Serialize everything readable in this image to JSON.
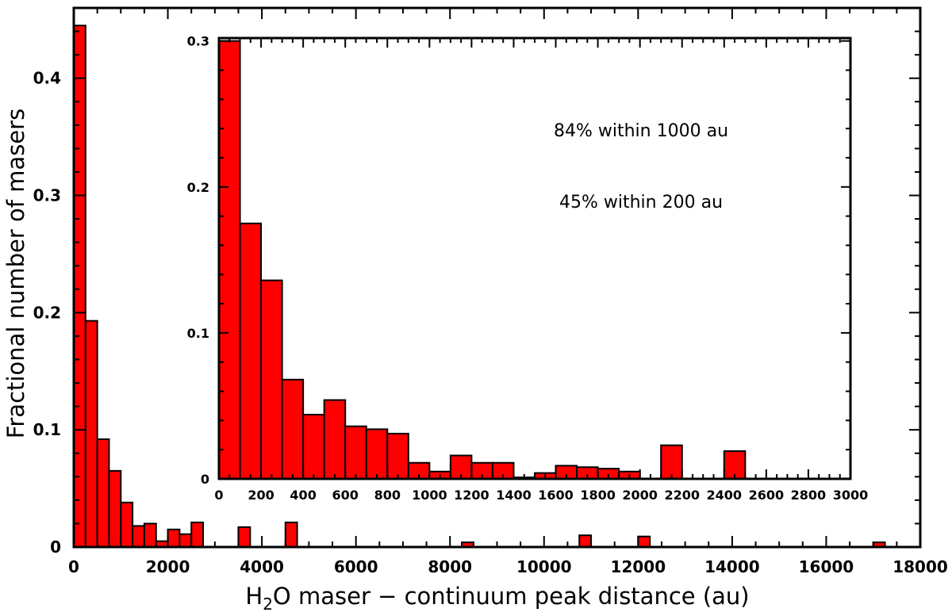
{
  "chart_data": [
    {
      "type": "bar",
      "role": "main",
      "xlabel_parts": [
        "H",
        "2",
        "O maser − continuum peak  distance (au)"
      ],
      "ylabel": "Fractional number of masers",
      "xlim": [
        0,
        18000
      ],
      "ylim": [
        0,
        0.46
      ],
      "bin_width": 250,
      "xticks": [
        0,
        2000,
        4000,
        6000,
        8000,
        10000,
        12000,
        14000,
        16000,
        18000
      ],
      "xtick_labels": [
        "0",
        "2000",
        "4000",
        "6000",
        "8000",
        "10000",
        "12000",
        "14000",
        "16000",
        "18000"
      ],
      "yticks": [
        0,
        0.1,
        0.2,
        0.3,
        0.4
      ],
      "ytick_labels": [
        "0",
        "0.1",
        "0.2",
        "0.3",
        "0.4"
      ],
      "bin_starts": [
        0,
        250,
        500,
        750,
        1000,
        1250,
        1500,
        1750,
        2000,
        2250,
        2500,
        3500,
        4500,
        8250,
        10750,
        12000,
        17000
      ],
      "values": [
        0.445,
        0.193,
        0.092,
        0.065,
        0.038,
        0.018,
        0.02,
        0.005,
        0.015,
        0.011,
        0.021,
        0.017,
        0.021,
        0.004,
        0.01,
        0.009,
        0.004
      ]
    },
    {
      "type": "bar",
      "role": "inset",
      "xlim": [
        0,
        3000
      ],
      "ylim": [
        0,
        0.302
      ],
      "bin_width": 100,
      "xticks": [
        0,
        200,
        400,
        600,
        800,
        1000,
        1200,
        1400,
        1600,
        1800,
        2000,
        2200,
        2400,
        2600,
        2800,
        3000
      ],
      "xtick_labels": [
        "0",
        "200",
        "400",
        "600",
        "800",
        "1000",
        "1200",
        "1400",
        "1600",
        "1800",
        "2000",
        "2200",
        "2400",
        "2600",
        "2800",
        "3000"
      ],
      "yticks": [
        0,
        0.1,
        0.2,
        0.3
      ],
      "ytick_labels": [
        "0",
        "0.1",
        "0.2",
        "0.3"
      ],
      "bin_starts": [
        0,
        100,
        200,
        300,
        400,
        500,
        600,
        700,
        800,
        900,
        1000,
        1100,
        1200,
        1300,
        1400,
        1500,
        1600,
        1700,
        1800,
        1900,
        2100,
        2400
      ],
      "values": [
        0.3,
        0.175,
        0.136,
        0.068,
        0.044,
        0.054,
        0.036,
        0.034,
        0.031,
        0.011,
        0.005,
        0.016,
        0.011,
        0.011,
        0.001,
        0.004,
        0.009,
        0.008,
        0.007,
        0.005,
        0.023,
        0.019
      ],
      "annotations": [
        "84% within 1000 au",
        "45% within 200 au"
      ]
    }
  ]
}
